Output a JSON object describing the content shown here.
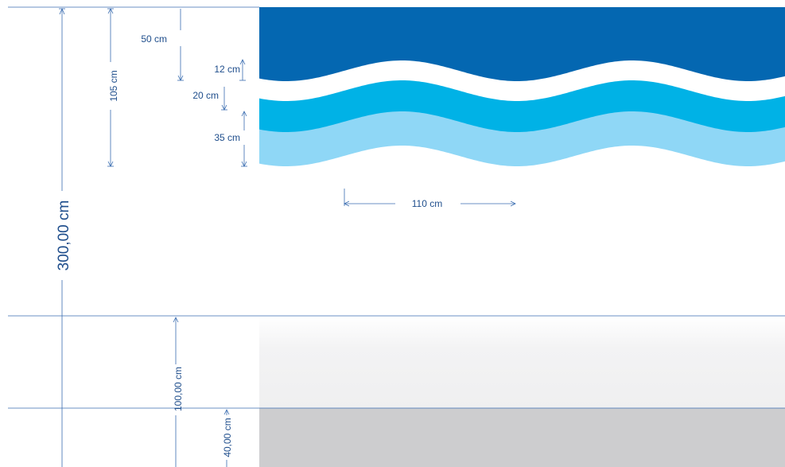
{
  "dimensions": {
    "total_height": "300,00 cm",
    "top_band": "105 cm",
    "dark_band": "50 cm",
    "white_gap": "12 cm",
    "mid_band": "20 cm",
    "light_band": "35 cm",
    "wave_period": "110 cm",
    "wainscot_height": "100,00 cm",
    "skirting_height": "40,00 cm"
  },
  "colors": {
    "dark_blue": "#0467b1",
    "mid_blue": "#00b2e6",
    "light_blue": "#8fd7f6",
    "wainscot": "#f2f2f3",
    "skirting": "#cdcdcf",
    "dim_line": "#3a6db0"
  }
}
